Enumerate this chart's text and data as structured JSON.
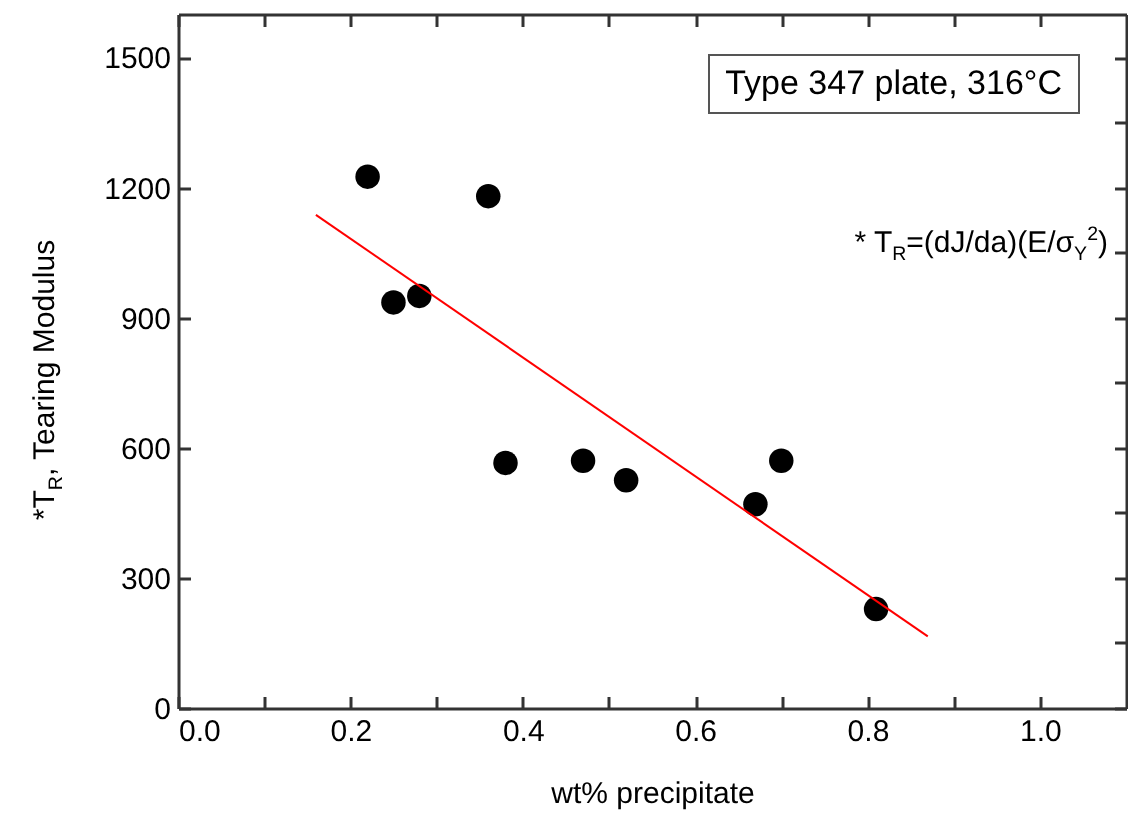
{
  "chart_data": {
    "type": "scatter",
    "xlabel": "wt% precipitate",
    "ylabel": "*T$_{R}$, Tearing Modulus",
    "annotations": [
      "Type 347 plate, 316°C",
      "* T$_{R}$=(dJ/da)(E/σ$_{Y}$$^{2}$)"
    ],
    "xlim": [
      0,
      1.1
    ],
    "ylim": [
      0,
      1600
    ],
    "xticks": [
      {
        "value": 0,
        "label": "0.0"
      },
      {
        "value": 0.1,
        "label": null
      },
      0.2,
      {
        "value": 0.3,
        "label": null
      },
      0.4,
      {
        "value": 0.5,
        "label": null
      },
      0.6,
      {
        "value": 0.7,
        "label": null
      },
      0.8,
      {
        "value": 0.9,
        "label": null
      },
      {
        "value": 1,
        "label": "1.0"
      }
    ],
    "yticks": [
      0,
      {
        "value": 150,
        "label": null
      },
      300,
      {
        "value": 450,
        "label": null
      },
      600,
      {
        "value": 750,
        "label": null
      },
      900,
      {
        "value": 1050,
        "label": null
      },
      1200,
      {
        "value": 1350,
        "label": null
      },
      1500
    ],
    "series": [
      {
        "marker": "circle",
        "color": "#000000",
        "x": [
          0.22,
          0.25,
          0.28,
          0.36,
          0.38,
          0.47,
          0.52,
          0.67,
          0.7,
          0.81
        ],
        "values": [
          1225,
          935,
          950,
          1180,
          565,
          570,
          525,
          470,
          570,
          228
        ]
      },
      {
        "type": "line",
        "color": "#ff0000",
        "x": [
          0.16,
          0.87
        ],
        "values": [
          1137,
          165
        ]
      }
    ]
  }
}
